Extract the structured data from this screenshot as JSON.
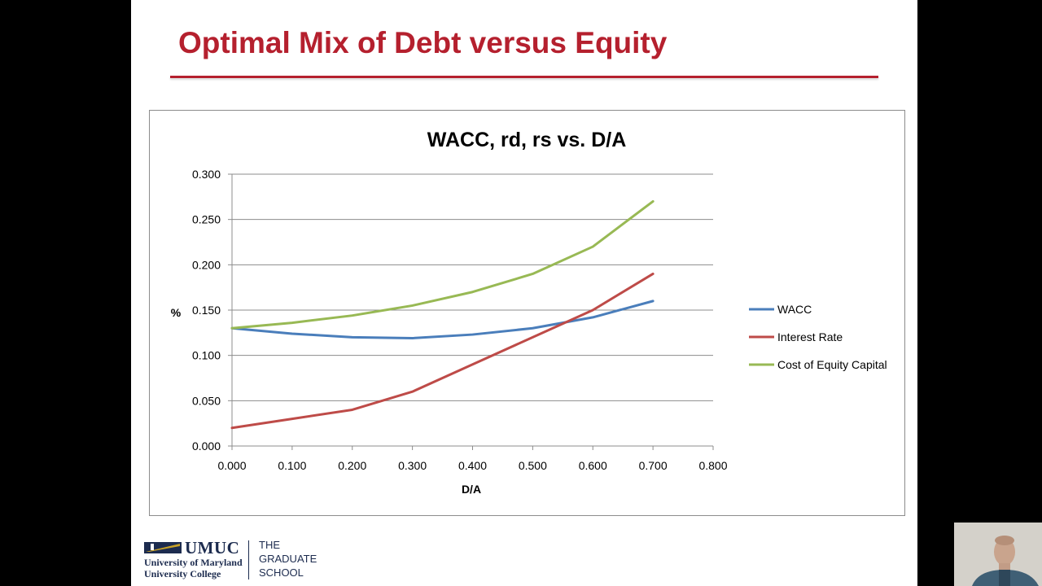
{
  "slide": {
    "title": "Optimal Mix of Debt versus Equity"
  },
  "colors": {
    "title": "#b5202e",
    "wacc": "#4a7ebb",
    "interest": "#be4b48",
    "equity": "#98b954"
  },
  "chart_data": {
    "type": "line",
    "title": "WACC, rd, rs vs. D/A",
    "xlabel": "D/A",
    "ylabel": "%",
    "xlim": [
      0,
      0.8
    ],
    "ylim": [
      0,
      0.3
    ],
    "x_ticks": [
      "0.000",
      "0.100",
      "0.200",
      "0.300",
      "0.400",
      "0.500",
      "0.600",
      "0.700",
      "0.800"
    ],
    "y_ticks": [
      "0.000",
      "0.050",
      "0.100",
      "0.150",
      "0.200",
      "0.250",
      "0.300"
    ],
    "grid": "horizontal",
    "legend_position": "right",
    "x": [
      0,
      0.1,
      0.2,
      0.3,
      0.4,
      0.5,
      0.6,
      0.7
    ],
    "series": [
      {
        "name": "WACC",
        "color": "#4a7ebb",
        "values": [
          0.13,
          0.124,
          0.12,
          0.119,
          0.123,
          0.13,
          0.142,
          0.16
        ]
      },
      {
        "name": "Interest Rate",
        "color": "#be4b48",
        "values": [
          0.02,
          0.03,
          0.04,
          0.06,
          0.09,
          0.12,
          0.15,
          0.19
        ]
      },
      {
        "name": "Cost of Equity Capital",
        "color": "#98b954",
        "values": [
          0.13,
          0.136,
          0.144,
          0.155,
          0.17,
          0.19,
          0.22,
          0.27
        ]
      }
    ]
  },
  "footer": {
    "logo_name": "UMUC",
    "logo_line1": "University of Maryland",
    "logo_line2": "University College",
    "school_line1": "THE",
    "school_line2": "GRADUATE",
    "school_line3": "SCHOOL"
  },
  "icons": {
    "logo_mark": "umuc-mark-icon",
    "webcam": "presenter-webcam"
  }
}
